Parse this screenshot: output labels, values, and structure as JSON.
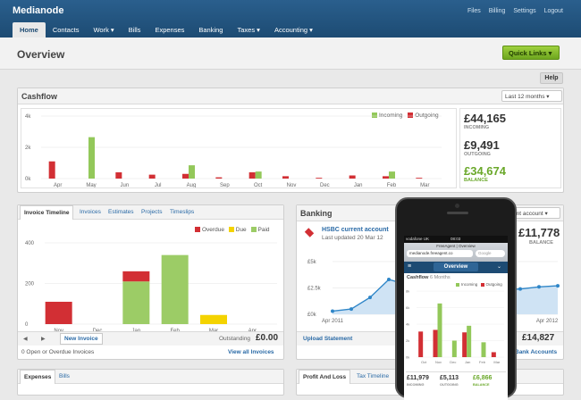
{
  "app": {
    "brand": "Medianode",
    "top_links": [
      "Files",
      "Billing",
      "Settings",
      "Logout"
    ]
  },
  "nav": [
    {
      "label": "Home"
    },
    {
      "label": "Contacts"
    },
    {
      "label": "Work ▾"
    },
    {
      "label": "Bills"
    },
    {
      "label": "Expenses"
    },
    {
      "label": "Banking"
    },
    {
      "label": "Taxes ▾"
    },
    {
      "label": "Accounting ▾"
    }
  ],
  "page": {
    "title": "Overview",
    "quick_links": "Quick Links ▾",
    "help": "Help"
  },
  "cashflow": {
    "title": "Cashflow",
    "period": "Last 12 months",
    "legend_in": "Incoming",
    "legend_out": "Outgoing",
    "incoming": "£44,165",
    "incoming_label": "INCOMING",
    "outgoing": "£9,491",
    "outgoing_label": "OUTGOING",
    "balance": "£34,674",
    "balance_label": "BALANCE",
    "y_ticks": [
      "4k",
      "2k",
      "0k"
    ]
  },
  "invoices": {
    "tabs": [
      "Invoice Timeline",
      "Invoices",
      "Estimates",
      "Projects",
      "Timeslips"
    ],
    "legend": [
      "Overdue",
      "Due",
      "Paid"
    ],
    "y_ticks": [
      "400",
      "200",
      "0"
    ],
    "new_invoice": "New Invoice",
    "outstanding_label": "Outstanding",
    "outstanding": "£0.00",
    "open_label": "0  Open or Overdue Invoices",
    "view_all": "View all Invoices"
  },
  "banking": {
    "title": "Banking",
    "account_select": "HSBC current account",
    "account_name": "HSBC current account",
    "updated": "Last updated 20 Mar 12",
    "balance": "£11,778",
    "balance_label": "BALANCE",
    "y_ticks": [
      "£5k",
      "£2.5k",
      "£0k"
    ],
    "x_first": "Apr 2011",
    "x_last": "Apr 2012",
    "upload": "Upload Statement",
    "balance2": "£14,827",
    "bank_accounts": "Bank Accounts"
  },
  "bottom": {
    "expenses_tab": "Expenses",
    "bills_tab": "Bills",
    "pl_tab": "Profit And Loss",
    "tax_tab": "Tax Timeline"
  },
  "phone": {
    "carrier": "vodafone UK",
    "time": "08:03",
    "site": "FreeAgent | Overview",
    "url": "medianode.freeagent.co",
    "search": "Google",
    "title": "Overview",
    "cashflow": "Cashflow",
    "period": "6 Months",
    "legend_in": "Incoming",
    "legend_out": "Outgoing",
    "incoming": "£11,979",
    "incoming_label": "INCOMING",
    "outgoing": "£5,113",
    "outgoing_label": "OUTGOING",
    "balance": "£6,866",
    "balance_label": "BALANCE",
    "y_ticks": [
      "8k",
      "6k",
      "4k",
      "2k",
      "0k"
    ],
    "x_labels": [
      "Oct",
      "Nov",
      "Dec",
      "Jan",
      "Feb",
      "Mar"
    ]
  },
  "colors": {
    "incoming": "#93c85a",
    "outgoing": "#d22f34",
    "due": "#f4d300",
    "paid": "#9ccc66",
    "accent": "#2a6aa6"
  },
  "chart_data": [
    {
      "type": "bar",
      "title": "Cashflow",
      "categories": [
        "Apr",
        "May",
        "Jun",
        "Jul",
        "Aug",
        "Sep",
        "Oct",
        "Nov",
        "Dec",
        "Jan",
        "Feb",
        "Mar"
      ],
      "series": [
        {
          "name": "Incoming",
          "values": [
            0,
            2650,
            0,
            0,
            850,
            0,
            450,
            0,
            0,
            0,
            450,
            0
          ]
        },
        {
          "name": "Outgoing",
          "values": [
            1100,
            0,
            400,
            250,
            300,
            80,
            400,
            150,
            50,
            200,
            150,
            50
          ]
        }
      ],
      "ylim": [
        0,
        4000
      ]
    },
    {
      "type": "bar",
      "title": "Invoice Timeline",
      "categories": [
        "Nov",
        "Dec",
        "Jan",
        "Feb",
        "Mar",
        "Apr"
      ],
      "series": [
        {
          "name": "Overdue",
          "values": [
            110,
            0,
            50,
            0,
            0,
            0
          ]
        },
        {
          "name": "Due",
          "values": [
            0,
            0,
            0,
            0,
            45,
            0
          ]
        },
        {
          "name": "Paid",
          "values": [
            0,
            0,
            210,
            340,
            0,
            0
          ]
        }
      ],
      "ylim": [
        0,
        400
      ]
    },
    {
      "type": "area",
      "title": "Banking",
      "x": [
        0,
        1,
        2,
        3,
        4,
        5,
        6,
        7,
        8,
        9,
        10,
        11,
        12
      ],
      "values": [
        0.3,
        0.5,
        1.6,
        3.3,
        2.8,
        2.5,
        2.2,
        2.1,
        2.0,
        2.3,
        2.4,
        2.6,
        2.7
      ],
      "ylabel": "£k",
      "ylim": [
        0,
        5.5
      ]
    }
  ]
}
